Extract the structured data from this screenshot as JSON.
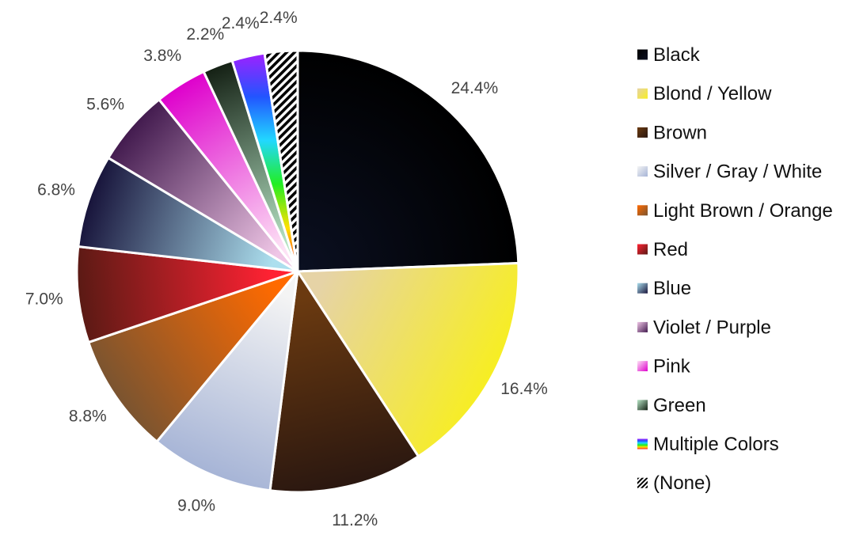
{
  "chart_data": {
    "type": "pie",
    "title": "",
    "legend_position": "right",
    "slices": [
      {
        "label": "Black",
        "value": 24.4,
        "value_label": "24.4%",
        "colors": [
          "#0b1022",
          "#000000"
        ],
        "gradient": "radial"
      },
      {
        "label": "Blond / Yellow",
        "value": 16.4,
        "value_label": "16.4%",
        "colors": [
          "#e6d3a6",
          "#f7ee22"
        ],
        "gradient": "linear"
      },
      {
        "label": "Brown",
        "value": 11.2,
        "value_label": "11.2%",
        "colors": [
          "#6b3a10",
          "#2a1710"
        ],
        "gradient": "linear"
      },
      {
        "label": "Silver / Gray / White",
        "value": 9.0,
        "value_label": "9.0%",
        "colors": [
          "#f4f4f4",
          "#a6b4d6"
        ],
        "gradient": "linear"
      },
      {
        "label": "Light Brown / Orange",
        "value": 8.8,
        "value_label": "8.8%",
        "colors": [
          "#ff6a00",
          "#7a5430"
        ],
        "gradient": "linear"
      },
      {
        "label": "Red",
        "value": 7.0,
        "value_label": "7.0%",
        "colors": [
          "#ff2233",
          "#5a1a14"
        ],
        "gradient": "linear"
      },
      {
        "label": "Blue",
        "value": 6.8,
        "value_label": "6.8%",
        "colors": [
          "#acdfee",
          "#17133a"
        ],
        "gradient": "linear"
      },
      {
        "label": "Violet / Purple",
        "value": 5.6,
        "value_label": "5.6%",
        "colors": [
          "#efc6e6",
          "#421a4e"
        ],
        "gradient": "linear"
      },
      {
        "label": "Pink",
        "value": 3.8,
        "value_label": "3.8%",
        "colors": [
          "#fde2f5",
          "#de00cc"
        ],
        "gradient": "linear"
      },
      {
        "label": "Green",
        "value": 2.2,
        "value_label": "2.2%",
        "colors": [
          "#b8e6c6",
          "#142014"
        ],
        "gradient": "linear"
      },
      {
        "label": "Multiple Colors",
        "value": 2.4,
        "value_label": "2.4%",
        "colors": [
          "#ff2020",
          "#ffe000",
          "#22ee22",
          "#22d8ff",
          "#2255ff",
          "#a020ff"
        ],
        "gradient": "rainbow"
      },
      {
        "label": "(None)",
        "value": 2.4,
        "value_label": "2.4%",
        "colors": [
          "#000000",
          "#ffffff"
        ],
        "gradient": "hatch"
      }
    ]
  }
}
